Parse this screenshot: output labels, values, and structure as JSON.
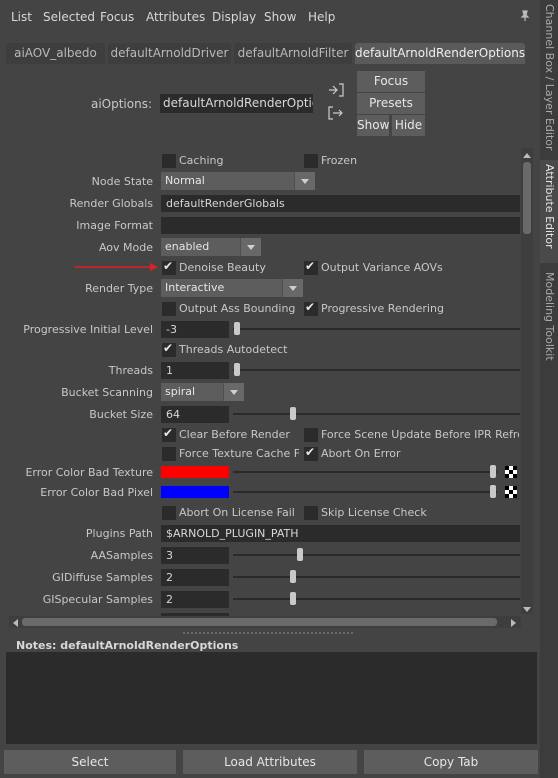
{
  "menubar": {
    "items": [
      "List",
      "Selected",
      "Focus",
      "Attributes",
      "Display",
      "Show",
      "Help"
    ]
  },
  "side_tabs": [
    "Channel Box / Layer Editor",
    "Attribute Editor",
    "Modeling Toolkit"
  ],
  "tabs": [
    "aiAOV_albedo",
    "defaultArnoldDriver",
    "defaultArnoldFilter",
    "defaultArnoldRenderOptions"
  ],
  "header": {
    "node_label": "aiOptions:",
    "node_value": "defaultArnoldRenderOptions",
    "focus": "Focus",
    "presets": "Presets",
    "show": "Show",
    "hide": "Hide"
  },
  "attrs": {
    "caching": "Caching",
    "frozen": "Frozen",
    "node_state_label": "Node State",
    "node_state_value": "Normal",
    "render_globals_label": "Render Globals",
    "render_globals_value": "defaultRenderGlobals",
    "image_format_label": "Image Format",
    "image_format_value": "",
    "aov_mode_label": "Aov Mode",
    "aov_mode_value": "enabled",
    "denoise_beauty": "Denoise Beauty",
    "output_variance": "Output Variance AOVs",
    "render_type_label": "Render Type",
    "render_type_value": "Interactive",
    "output_ass_bounding": "Output Ass Bounding E",
    "progressive_rendering": "Progressive Rendering",
    "prog_initial_label": "Progressive Initial Level",
    "prog_initial_value": "-3",
    "threads_autodetect": "Threads Autodetect",
    "threads_label": "Threads",
    "threads_value": "1",
    "bucket_scanning_label": "Bucket Scanning",
    "bucket_scanning_value": "spiral",
    "bucket_size_label": "Bucket Size",
    "bucket_size_value": "64",
    "clear_before_render": "Clear Before Render",
    "force_scene_update": "Force Scene Update Before IPR Refresh",
    "force_texture_cache": "Force Texture Cache Flu",
    "abort_on_error": "Abort On Error",
    "error_bad_texture_label": "Error Color Bad Texture",
    "error_bad_texture_color": "#ff0000",
    "error_bad_pixel_label": "Error Color Bad Pixel",
    "error_bad_pixel_color": "#0000ff",
    "abort_on_license_fail": "Abort On License Fail",
    "skip_license_check": "Skip License Check",
    "plugins_path_label": "Plugins Path",
    "plugins_path_value": "$ARNOLD_PLUGIN_PATH",
    "aa_samples_label": "AASamples",
    "aa_samples_value": "3",
    "gi_diffuse_label": "GIDiffuse Samples",
    "gi_diffuse_value": "2",
    "gi_specular_label": "GISpecular Samples",
    "gi_specular_value": "2"
  },
  "notes": {
    "label": "Notes:  defaultArnoldRenderOptions",
    "text": ""
  },
  "footer": {
    "select": "Select",
    "load_attributes": "Load Attributes",
    "copy_tab": "Copy Tab"
  },
  "annotation_color": "#e02020"
}
